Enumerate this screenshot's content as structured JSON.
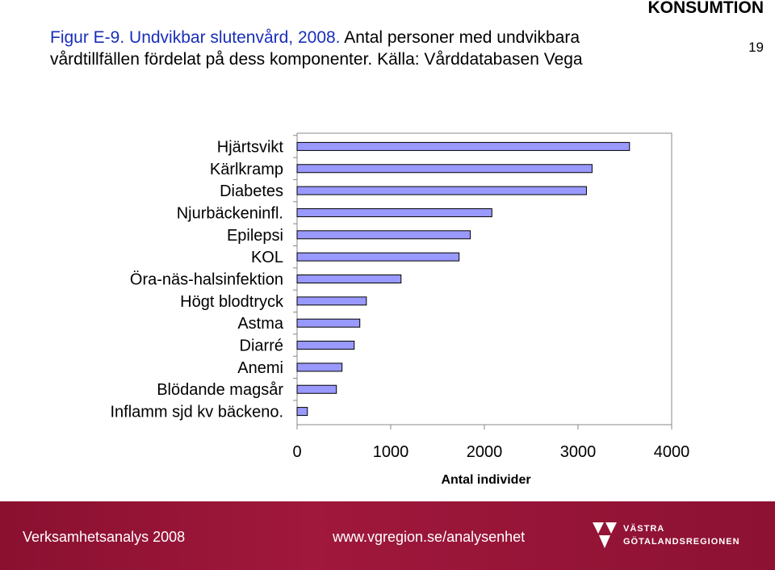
{
  "header": {
    "title_highlight": "Figur E-9. Undvikbar slutenvård, 2008.",
    "title_rest": " Antal personer med undvikbara vårdtillfällen fördelat på dess komponenter. Källa: Vårddatabasen Vega",
    "section": "KONSUMTION",
    "page_number": "19"
  },
  "chart_data": {
    "type": "bar",
    "orientation": "horizontal",
    "categories": [
      "Hjärtsvikt",
      "Kärlkramp",
      "Diabetes",
      "Njurbäckeninfl.",
      "Epilepsi",
      "KOL",
      "Öra-näs-halsinfektion",
      "Högt blodtryck",
      "Astma",
      "Diarré",
      "Anemi",
      "Blödande magsår",
      "Inflamm sjd kv bäckeno."
    ],
    "values": [
      3550,
      3150,
      3090,
      2080,
      1850,
      1730,
      1110,
      740,
      670,
      610,
      480,
      420,
      110
    ],
    "xlabel": "Antal individer",
    "xlim": [
      0,
      4000
    ],
    "xticks": [
      0,
      1000,
      2000,
      3000,
      4000
    ],
    "grid": false,
    "bar_color": "#9999ff"
  },
  "footer": {
    "left_text": "Verksamhetsanalys 2008",
    "center_text": "www.vgregion.se/analysenhet",
    "logo_line1": "VÄSTRA",
    "logo_line2": "GÖTALANDSREGIONEN"
  }
}
